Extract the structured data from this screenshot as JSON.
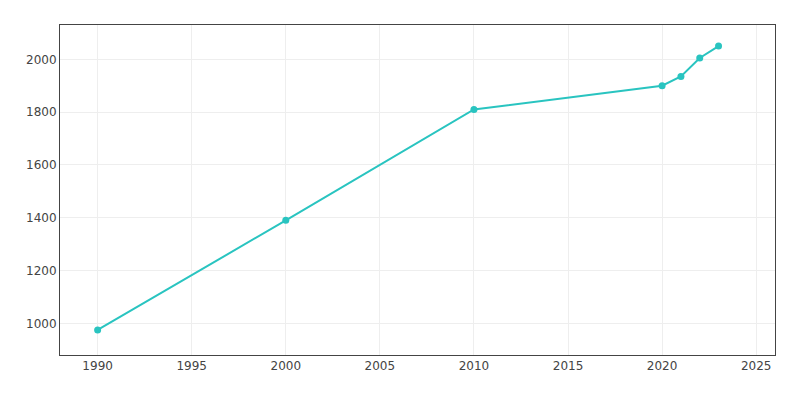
{
  "chart_data": {
    "type": "line",
    "x": [
      1990,
      2000,
      2010,
      2020,
      2021,
      2022,
      2023
    ],
    "values": [
      975,
      1390,
      1810,
      1900,
      1935,
      2005,
      2050
    ],
    "color": "#29C4C0",
    "marker": "circle",
    "xlim": [
      1988,
      2026
    ],
    "ylim": [
      880,
      2130
    ],
    "xticks": [
      1990,
      1995,
      2000,
      2005,
      2010,
      2015,
      2020,
      2025
    ],
    "yticks": [
      1000,
      1200,
      1400,
      1600,
      1800,
      2000
    ],
    "grid": true
  }
}
